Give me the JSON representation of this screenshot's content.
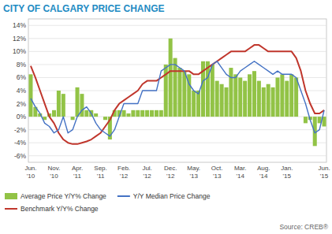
{
  "chart_data": {
    "type": "bar",
    "title": "CITY OF CALGARY PRICE CHANGE",
    "annotations": [
      "Source: CREB®"
    ],
    "categories": [
      "Jun.\n'10",
      null,
      null,
      null,
      null,
      "Nov.\n'10",
      null,
      null,
      null,
      null,
      "Apr.\n'11",
      null,
      null,
      null,
      null,
      "Sep.\n'11",
      null,
      null,
      null,
      null,
      "Feb.\n'12",
      null,
      null,
      null,
      null,
      "Jul.\n'12",
      null,
      null,
      null,
      null,
      "Dec.\n'12",
      null,
      null,
      null,
      null,
      "May.\n'13",
      null,
      null,
      null,
      null,
      "Oct.\n'13",
      null,
      null,
      null,
      null,
      "Mar.\n'14",
      null,
      null,
      null,
      null,
      "Aug.\n'14",
      null,
      null,
      null,
      null,
      "Jan.\n'15",
      null,
      null,
      null,
      null,
      null,
      null,
      null,
      "Jun.\n'15"
    ],
    "series": [
      {
        "name": "Average Price Y/Y% Change",
        "type": "bar",
        "color": "#92C346",
        "values": [
          0.065,
          0.015,
          0.005,
          -0.005,
          0.005,
          0.01,
          0.04,
          0.035,
          0.0,
          -0.005,
          0.045,
          0.035,
          0.01,
          0.01,
          0.005,
          0.0,
          -0.005,
          -0.035,
          0.01,
          0.01,
          0.01,
          0.005,
          0.01,
          0.01,
          0.01,
          0.01,
          0.01,
          0.01,
          0.01,
          0.08,
          0.12,
          0.09,
          0.075,
          0.07,
          0.065,
          0.04,
          0.04,
          0.085,
          0.085,
          0.08,
          0.055,
          0.05,
          0.045,
          0.075,
          0.065,
          0.06,
          0.055,
          0.065,
          0.07,
          0.055,
          0.045,
          0.05,
          0.045,
          0.06,
          0.065,
          0.055,
          0.065,
          0.06,
          0.0,
          -0.01,
          -0.005,
          -0.045,
          -0.01,
          -0.015
        ]
      },
      {
        "name": "Y/Y Median Price Change",
        "type": "line",
        "color": "#4472C4",
        "values": [
          0.028,
          0.015,
          0.005,
          -0.01,
          -0.015,
          -0.025,
          -0.02,
          0.0,
          -0.025,
          -0.02,
          0.0,
          0.01,
          0.015,
          0.005,
          -0.01,
          -0.02,
          -0.025,
          -0.03,
          -0.02,
          0.0,
          0.02,
          0.02,
          0.02,
          0.02,
          0.04,
          0.04,
          0.04,
          0.04,
          0.07,
          0.075,
          0.08,
          0.08,
          0.075,
          0.07,
          0.05,
          0.04,
          0.035,
          0.055,
          0.06,
          0.08,
          0.085,
          0.075,
          0.065,
          0.06,
          0.06,
          0.07,
          0.075,
          0.08,
          0.085,
          0.08,
          0.075,
          0.07,
          0.065,
          0.07,
          0.065,
          0.065,
          0.065,
          0.06,
          0.04,
          0.02,
          -0.005,
          -0.025,
          -0.02,
          0.01
        ]
      },
      {
        "name": "Benchmark Y/Y% Change",
        "type": "line",
        "color": "#C0362C",
        "values": [
          0.078,
          0.06,
          0.04,
          0.02,
          0.0,
          -0.01,
          -0.025,
          -0.035,
          -0.04,
          -0.042,
          -0.042,
          -0.04,
          -0.038,
          -0.035,
          -0.03,
          -0.025,
          -0.015,
          -0.005,
          0.01,
          0.02,
          0.025,
          0.03,
          0.035,
          0.04,
          0.05,
          0.055,
          0.055,
          0.055,
          0.06,
          0.065,
          0.07,
          0.07,
          0.07,
          0.07,
          0.07,
          0.065,
          0.065,
          0.07,
          0.075,
          0.08,
          0.085,
          0.09,
          0.095,
          0.1,
          0.1,
          0.1,
          0.1,
          0.105,
          0.11,
          0.11,
          0.105,
          0.1,
          0.1,
          0.1,
          0.1,
          0.1,
          0.1,
          0.09,
          0.07,
          0.04,
          0.02,
          0.005,
          0.005,
          0.01
        ]
      }
    ],
    "ylim": [
      -0.07,
      0.15
    ],
    "yticks": [
      {
        "value": -0.06,
        "label": "-6%"
      },
      {
        "value": -0.04,
        "label": "-4%"
      },
      {
        "value": -0.02,
        "label": "-2%"
      },
      {
        "value": 0.0,
        "label": "0%"
      },
      {
        "value": 0.02,
        "label": "2%"
      },
      {
        "value": 0.04,
        "label": "4%"
      },
      {
        "value": 0.06,
        "label": "6%"
      },
      {
        "value": 0.08,
        "label": "8%"
      },
      {
        "value": 0.1,
        "label": "10%"
      },
      {
        "value": 0.12,
        "label": "12%"
      },
      {
        "value": 0.14,
        "label": "14%"
      }
    ],
    "grid": true,
    "legend": "bottom"
  }
}
